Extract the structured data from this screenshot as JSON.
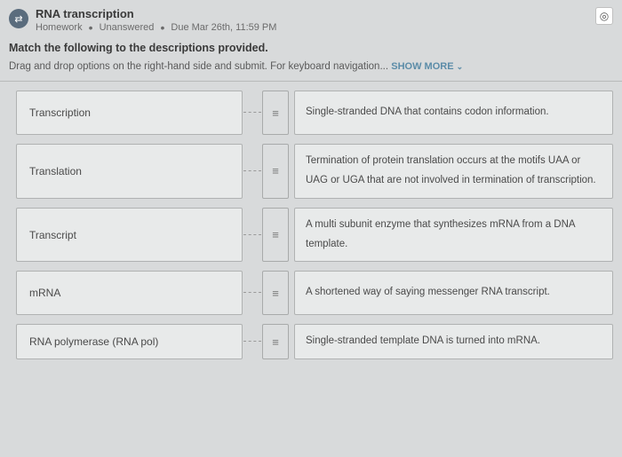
{
  "header": {
    "title": "RNA transcription",
    "category": "Homework",
    "status": "Unanswered",
    "due": "Due Mar 26th, 11:59 PM"
  },
  "instructions": "Match the following to the descriptions provided.",
  "subinstructions": "Drag and drop options on the right-hand side and submit. For keyboard navigation...",
  "show_more_label": "SHOW MORE",
  "rows": [
    {
      "left": "Transcription",
      "right": "Single-stranded DNA that contains codon information."
    },
    {
      "left": "Translation",
      "right": "Termination of protein translation occurs at the motifs UAA or UAG or UGA that are not involved in termination of transcription."
    },
    {
      "left": "Transcript",
      "right": "A multi subunit enzyme that synthesizes mRNA from a DNA template."
    },
    {
      "left": "mRNA",
      "right": "A shortened way of saying messenger RNA transcript."
    },
    {
      "left": "RNA polymerase (RNA pol)",
      "right": "Single-stranded template DNA is turned into mRNA."
    }
  ]
}
